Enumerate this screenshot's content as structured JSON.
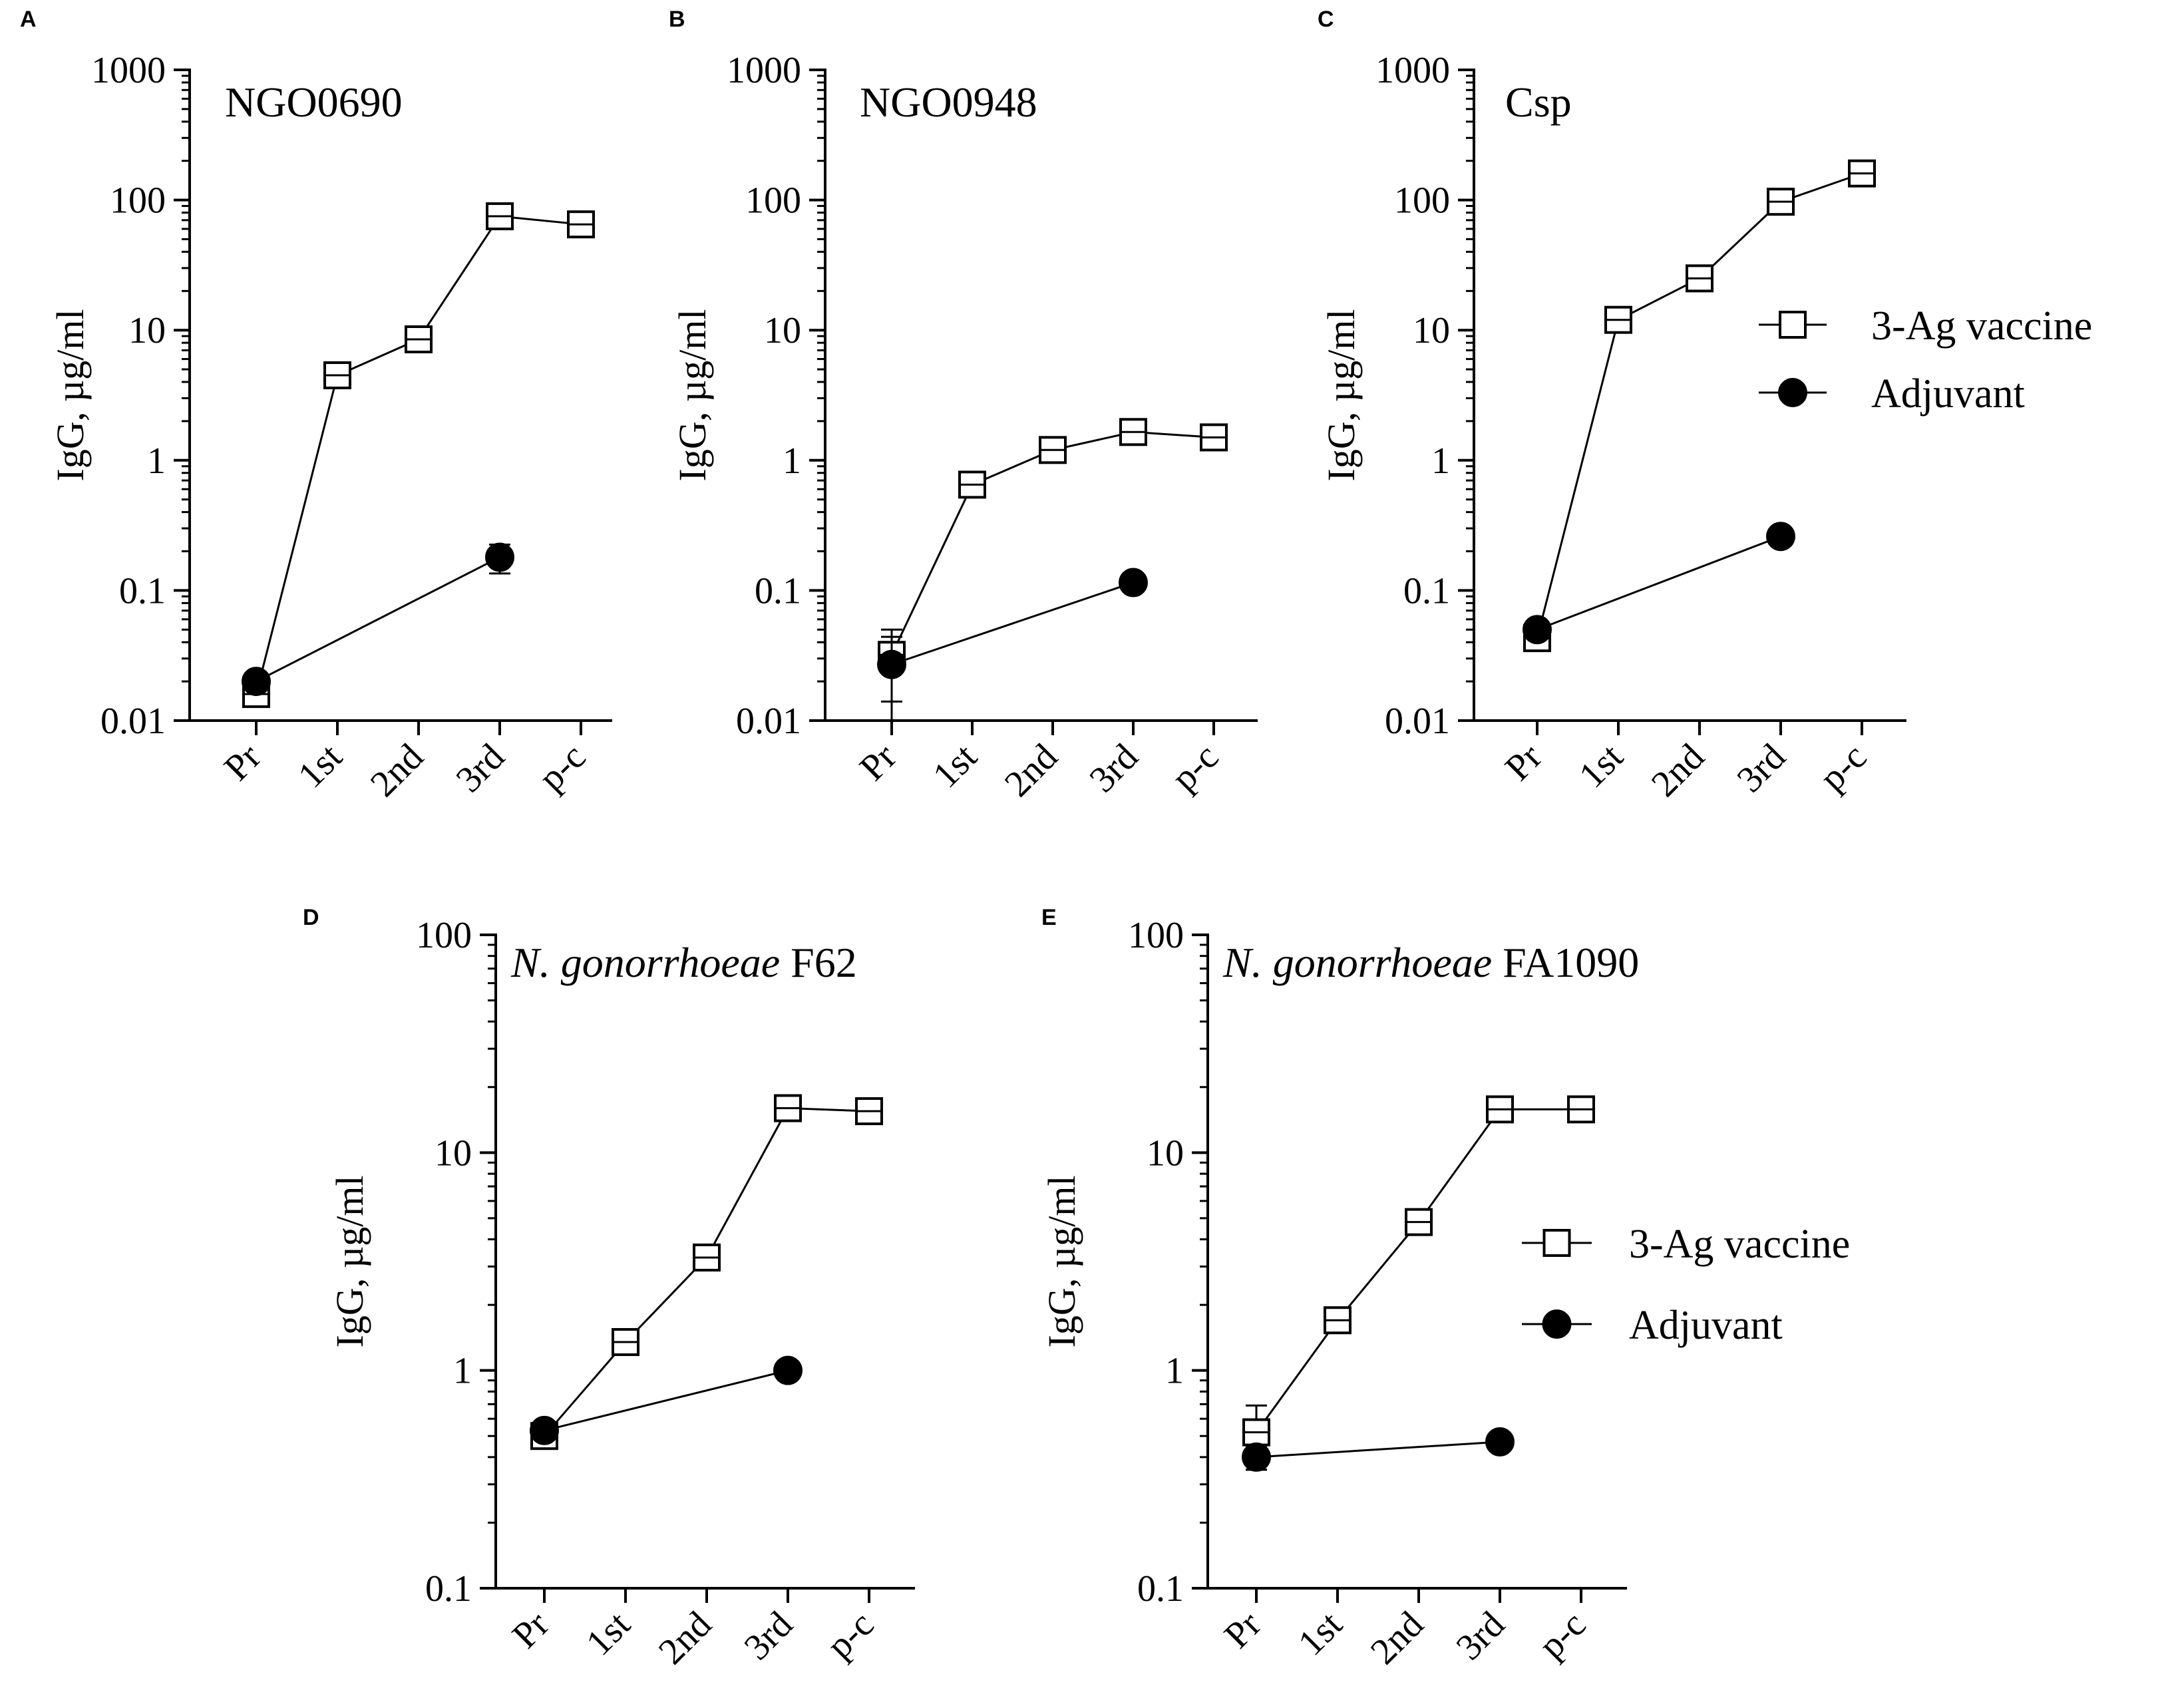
{
  "figure": {
    "legend": {
      "vaccine": "3-Ag vaccine",
      "adjuvant": "Adjuvant"
    }
  },
  "chart_data": [
    {
      "panel": "A",
      "type": "line",
      "title": "NGO0690",
      "title_italic": "",
      "xlabel": "",
      "ylabel": "IgG, µg/ml",
      "yscale": "log",
      "ylim": [
        0.01,
        1000
      ],
      "yticks": [
        "0.01",
        "0.1",
        "1",
        "10",
        "100",
        "1000"
      ],
      "categories": [
        "Pr",
        "1st",
        "2nd",
        "3rd",
        "p-c"
      ],
      "legend_visible": false,
      "series": [
        {
          "name": "3-Ag vaccine",
          "marker": "open-square",
          "values": [
            0.016,
            4.5,
            8.5,
            75,
            65
          ],
          "errors": [
            0.002,
            0.5,
            1.0,
            8,
            6
          ]
        },
        {
          "name": "Adjuvant",
          "marker": "filled-circle",
          "values": [
            0.02,
            null,
            null,
            0.18,
            null
          ],
          "errors": [
            0.002,
            null,
            null,
            0.045,
            null
          ]
        }
      ]
    },
    {
      "panel": "B",
      "type": "line",
      "title": "NGO0948",
      "title_italic": "",
      "xlabel": "",
      "ylabel": "IgG, µg/ml",
      "yscale": "log",
      "ylim": [
        0.01,
        1000
      ],
      "yticks": [
        "0.01",
        "0.1",
        "1",
        "10",
        "100",
        "1000"
      ],
      "categories": [
        "Pr",
        "1st",
        "2nd",
        "3rd",
        "p-c"
      ],
      "legend_visible": false,
      "series": [
        {
          "name": "3-Ag vaccine",
          "marker": "open-square",
          "values": [
            0.032,
            0.65,
            1.2,
            1.65,
            1.5
          ],
          "errors": [
            0.018,
            0.08,
            0.15,
            0.2,
            0.25
          ]
        },
        {
          "name": "Adjuvant",
          "marker": "filled-circle",
          "values": [
            0.027,
            null,
            null,
            0.115,
            null
          ],
          "errors": [
            0.017,
            null,
            null,
            0.01,
            null
          ]
        }
      ]
    },
    {
      "panel": "C",
      "type": "line",
      "title": "Csp",
      "title_italic": "",
      "xlabel": "",
      "ylabel": "IgG, µg/ml",
      "yscale": "log",
      "ylim": [
        0.01,
        1000
      ],
      "yticks": [
        "0.01",
        "0.1",
        "1",
        "10",
        "100",
        "1000"
      ],
      "categories": [
        "Pr",
        "1st",
        "2nd",
        "3rd",
        "p-c"
      ],
      "legend_visible": true,
      "series": [
        {
          "name": "3-Ag vaccine",
          "marker": "open-square",
          "values": [
            0.043,
            12,
            25,
            97,
            160
          ],
          "errors": [
            0.004,
            1.5,
            3,
            15,
            25
          ]
        },
        {
          "name": "Adjuvant",
          "marker": "filled-circle",
          "values": [
            0.05,
            null,
            null,
            0.26,
            null
          ],
          "errors": [
            0.003,
            null,
            null,
            0.02,
            null
          ]
        }
      ]
    },
    {
      "panel": "D",
      "type": "line",
      "title": "F62",
      "title_italic": "N. gonorrhoeae",
      "xlabel": "",
      "ylabel": "IgG, µg/ml",
      "yscale": "log",
      "ylim": [
        0.1,
        100
      ],
      "yticks": [
        "0.1",
        "1",
        "10",
        "100"
      ],
      "categories": [
        "Pr",
        "1st",
        "2nd",
        "3rd",
        "p-c"
      ],
      "legend_visible": false,
      "series": [
        {
          "name": "3-Ag vaccine",
          "marker": "open-square",
          "values": [
            0.5,
            1.35,
            3.3,
            16,
            15.5
          ],
          "errors": [
            0.05,
            0.12,
            0.35,
            1.2,
            1.2
          ]
        },
        {
          "name": "Adjuvant",
          "marker": "filled-circle",
          "values": [
            0.53,
            null,
            null,
            1.0,
            null
          ],
          "errors": [
            0.03,
            null,
            null,
            0.03,
            null
          ]
        }
      ]
    },
    {
      "panel": "E",
      "type": "line",
      "title": "FA1090",
      "title_italic": "N. gonorrhoeae",
      "xlabel": "",
      "ylabel": "IgG, µg/ml",
      "yscale": "log",
      "ylim": [
        0.1,
        100
      ],
      "yticks": [
        "0.1",
        "1",
        "10",
        "100"
      ],
      "categories": [
        "Pr",
        "1st",
        "2nd",
        "3rd",
        "p-c"
      ],
      "legend_visible": true,
      "series": [
        {
          "name": "3-Ag vaccine",
          "marker": "open-square",
          "values": [
            0.52,
            1.7,
            4.8,
            15.8,
            15.8
          ],
          "errors": [
            0.17,
            0.15,
            0.4,
            1.2,
            1.5
          ]
        },
        {
          "name": "Adjuvant",
          "marker": "filled-circle",
          "values": [
            0.4,
            null,
            null,
            0.47,
            null
          ],
          "errors": [
            0.05,
            null,
            null,
            0.02,
            null
          ]
        }
      ]
    }
  ]
}
